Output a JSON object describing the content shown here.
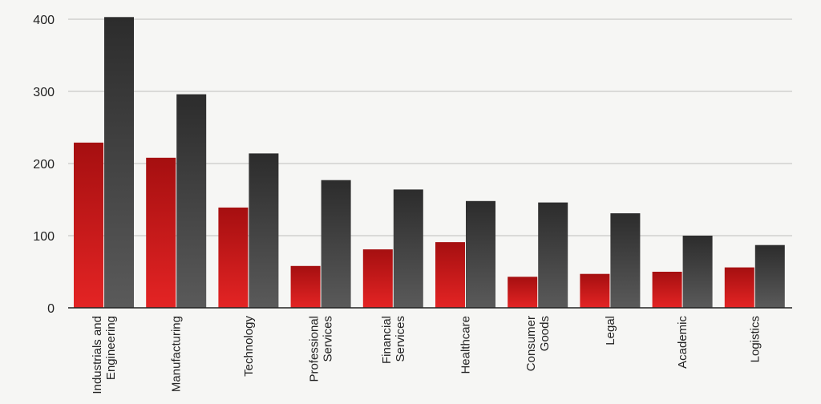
{
  "chart_data": {
    "type": "bar",
    "title": "",
    "xlabel": "",
    "ylabel": "",
    "ylim": [
      0,
      400
    ],
    "yticks": [
      "0",
      "100",
      "200",
      "300",
      "400"
    ],
    "grid": true,
    "legend": "none",
    "categories": [
      [
        "Industrials and",
        "Engineering"
      ],
      [
        "Manufacturing"
      ],
      [
        "Technology"
      ],
      [
        "Professional",
        "Services"
      ],
      [
        "Financial",
        "Services"
      ],
      [
        "Healthcare"
      ],
      [
        "Consumer",
        "Goods"
      ],
      [
        "Legal"
      ],
      [
        "Academic"
      ],
      [
        "Logistics"
      ]
    ],
    "series": [
      {
        "color_top": "#a50f10",
        "color_bottom": "#e42424",
        "values": [
          229,
          208,
          139,
          58,
          81,
          91,
          43,
          47,
          50,
          56
        ]
      },
      {
        "color_top": "#2c2c2c",
        "color_bottom": "#5a5a5a",
        "values": [
          403,
          296,
          214,
          177,
          164,
          148,
          146,
          131,
          100,
          87
        ]
      }
    ]
  }
}
